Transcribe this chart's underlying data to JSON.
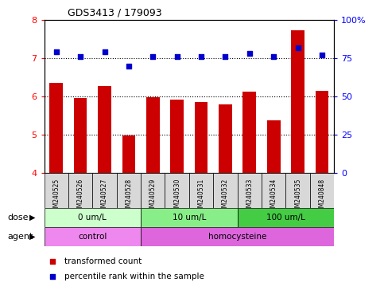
{
  "title": "GDS3413 / 179093",
  "samples": [
    "GSM240525",
    "GSM240526",
    "GSM240527",
    "GSM240528",
    "GSM240529",
    "GSM240530",
    "GSM240531",
    "GSM240532",
    "GSM240533",
    "GSM240534",
    "GSM240535",
    "GSM240848"
  ],
  "transformed_count": [
    6.35,
    5.95,
    6.27,
    4.97,
    5.97,
    5.92,
    5.85,
    5.8,
    6.12,
    5.37,
    7.72,
    6.15
  ],
  "percentile_rank": [
    79,
    76,
    79,
    70,
    76,
    76,
    76,
    76,
    78,
    76,
    82,
    77
  ],
  "bar_color": "#cc0000",
  "dot_color": "#0000cc",
  "ylim_left": [
    4,
    8
  ],
  "ylim_right": [
    0,
    100
  ],
  "yticks_left": [
    4,
    5,
    6,
    7,
    8
  ],
  "yticks_right": [
    0,
    25,
    50,
    75,
    100
  ],
  "yticklabels_right": [
    "0",
    "25",
    "50",
    "75",
    "100%"
  ],
  "dose_groups": [
    {
      "label": "0 um/L",
      "start": 0,
      "end": 4,
      "color": "#ccffcc"
    },
    {
      "label": "10 um/L",
      "start": 4,
      "end": 8,
      "color": "#88ee88"
    },
    {
      "label": "100 um/L",
      "start": 8,
      "end": 12,
      "color": "#44cc44"
    }
  ],
  "agent_groups": [
    {
      "label": "control",
      "start": 0,
      "end": 4,
      "color": "#ee88ee"
    },
    {
      "label": "homocysteine",
      "start": 4,
      "end": 12,
      "color": "#dd66dd"
    }
  ],
  "dose_label": "dose",
  "agent_label": "agent",
  "legend_items": [
    {
      "color": "#cc0000",
      "label": "transformed count"
    },
    {
      "color": "#0000cc",
      "label": "percentile rank within the sample"
    }
  ],
  "bar_bottom": 4.0,
  "bar_width": 0.55,
  "plot_bg": "#ffffff",
  "cell_bg": "#d8d8d8"
}
